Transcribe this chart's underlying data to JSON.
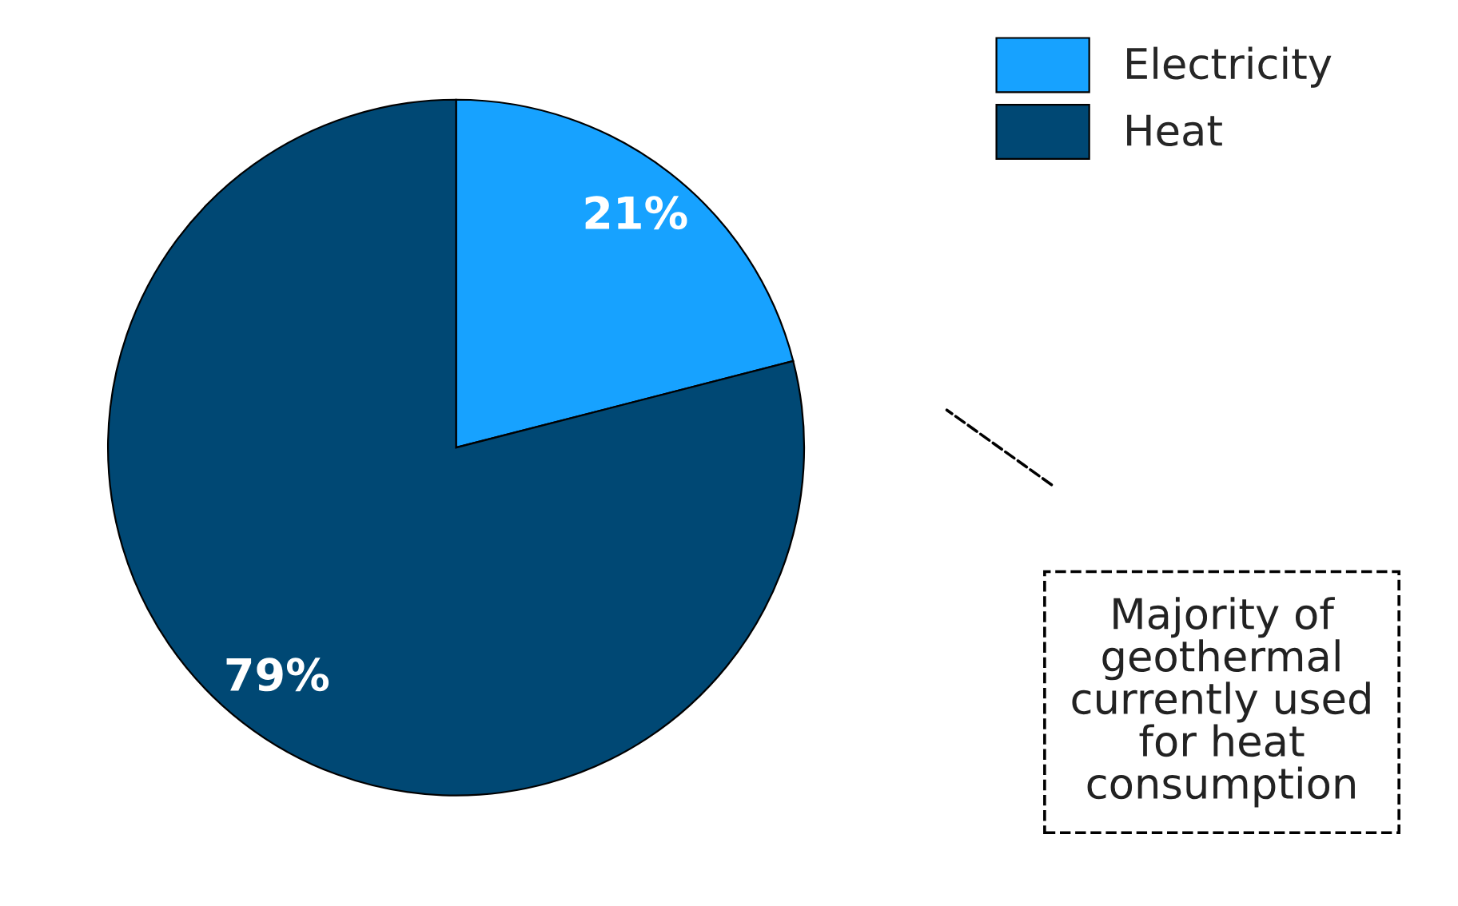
{
  "chart_data": {
    "type": "pie",
    "categories": [
      "Electricity",
      "Heat"
    ],
    "values": [
      21,
      79
    ],
    "colors": [
      "#17a2ff",
      "#004874"
    ],
    "value_labels": [
      "21%",
      "79%"
    ],
    "legend": "top right",
    "annotations": [
      "Majority of geothermal currently used for heat consumption"
    ]
  }
}
